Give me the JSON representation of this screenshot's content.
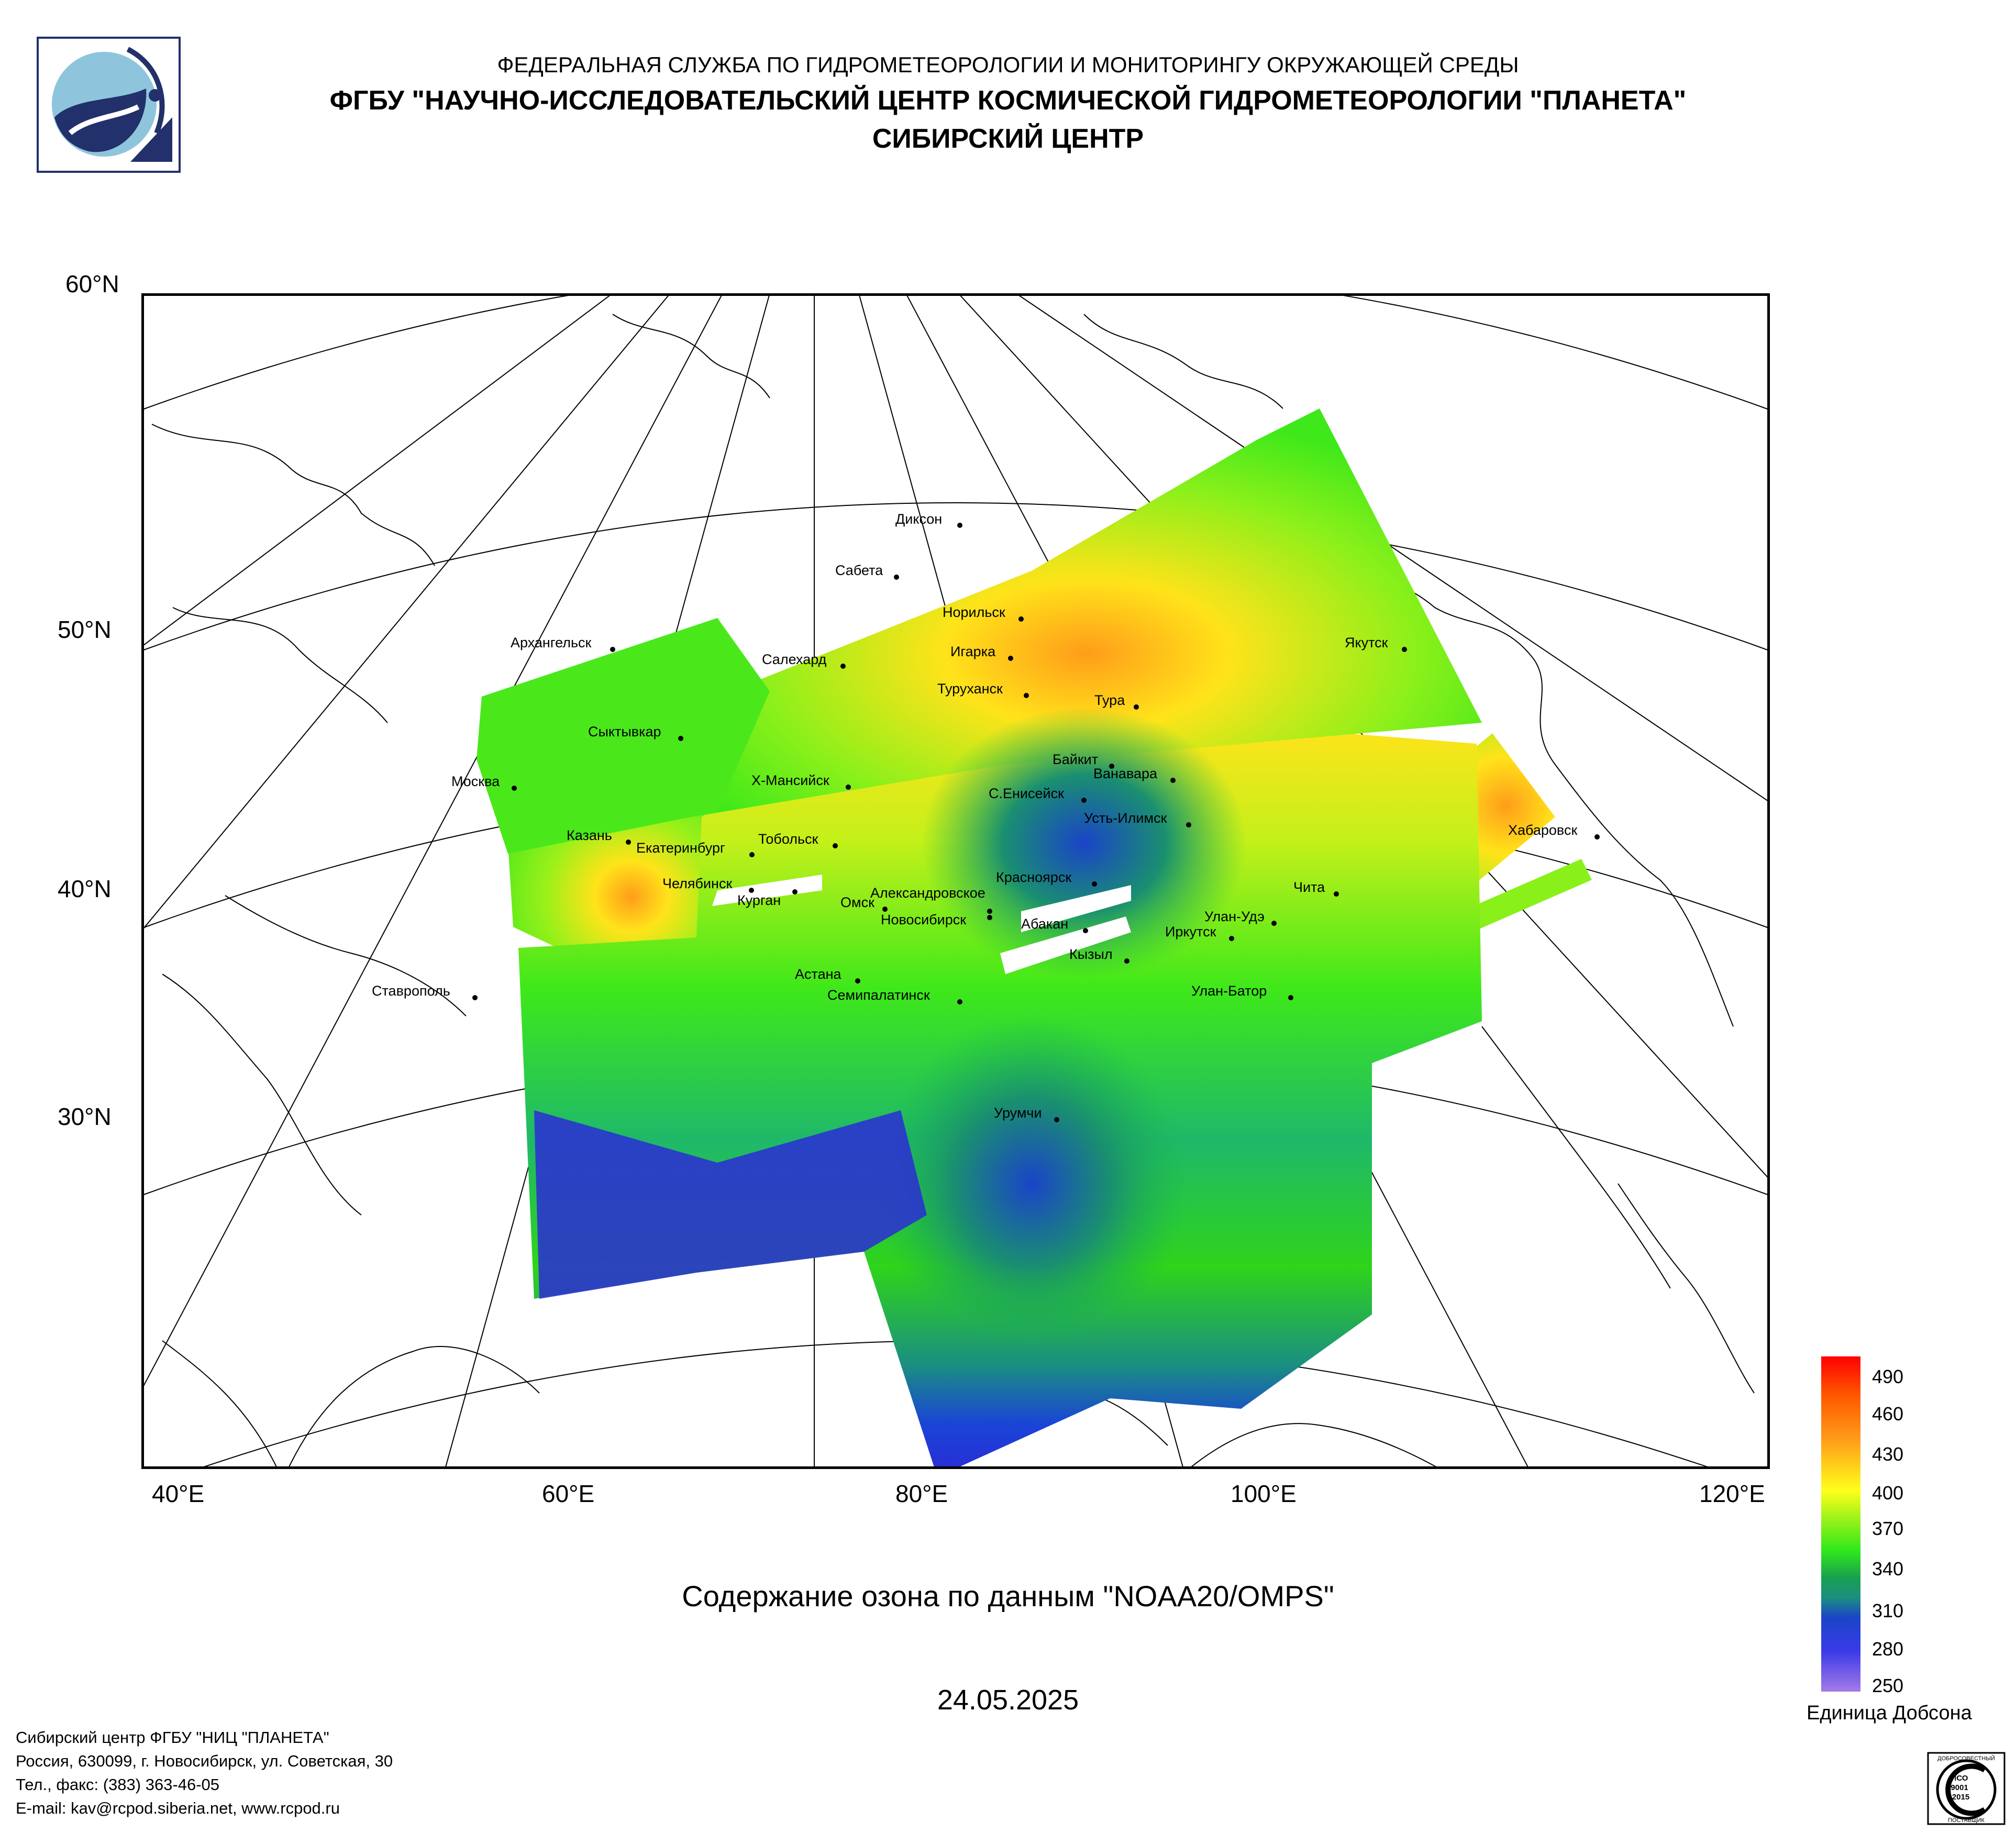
{
  "header": {
    "line1": "ФЕДЕРАЛЬНАЯ СЛУЖБА ПО ГИДРОМЕТЕОРОЛОГИИ И МОНИТОРИНГУ ОКРУЖАЮЩЕЙ СРЕДЫ",
    "line2": "ФГБУ \"НАУЧНО-ИССЛЕДОВАТЕЛЬСКИЙ ЦЕНТР КОСМИЧЕСКОЙ ГИДРОМЕТЕОРОЛОГИИ \"ПЛАНЕТА\"",
    "line3": "СИБИРСКИЙ ЦЕНТР"
  },
  "map": {
    "lat_labels": [
      "60°N",
      "50°N",
      "40°N",
      "30°N"
    ],
    "lon_labels": [
      "40°E",
      "60°E",
      "80°E",
      "100°E",
      "120°E"
    ],
    "cities": [
      "Диксон",
      "Сабета",
      "Норильск",
      "Игарка",
      "Салехард",
      "Туруханск",
      "Тура",
      "Якутск",
      "Архангельск",
      "Сыктывкар",
      "Байкит",
      "Ванавара",
      "Москва",
      "Х-Мансийск",
      "С.Енисейск",
      "Усть-Илимск",
      "Хабаровск",
      "Казань",
      "Екатеринбург",
      "Тобольск",
      "Чита",
      "Челябинск",
      "Курган",
      "Красноярск",
      "Александровское",
      "Омск",
      "Новосибирск",
      "Абакан",
      "Улан-Удэ",
      "Иркутск",
      "Кызыл",
      "Астана",
      "Ставрополь",
      "Семипалатинск",
      "Улан-Батор",
      "Урумчи"
    ]
  },
  "caption": "Содержание озона по данным \"NOAA20/OMPS\"",
  "date": "24.05.2025",
  "legend": {
    "ticks": [
      "490",
      "460",
      "430",
      "400",
      "370",
      "340",
      "310",
      "280",
      "250"
    ],
    "unit": "Единица Добсона"
  },
  "footer": {
    "line1": "Сибирский центр ФГБУ \"НИЦ \"ПЛАНЕТА\"",
    "line2": "Россия, 630099, г. Новосибирск, ул. Советская, 30",
    "line3": "Тел., факс: (383) 363-46-05",
    "line4": "E-mail: kav@rcpod.siberia.net, www.rcpod.ru"
  },
  "cert": {
    "line1": "ДОБРОСОВЕСТНЫЙ",
    "line2": "ИСО",
    "line3": "9001",
    "line4": "-2015",
    "line5": "ПОСТАВЩИК"
  },
  "colors": {
    "frame": "#000000",
    "logo_blue": "#22306b",
    "logo_light": "#8ec5dc",
    "ozone_low": "#2b2bd6",
    "ozone_mid": "#2fe81a",
    "ozone_high": "#ff2a00"
  }
}
